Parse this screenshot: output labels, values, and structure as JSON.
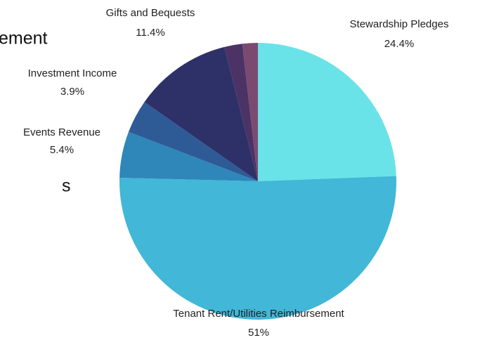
{
  "chart_data": {
    "type": "pie",
    "categories": [
      "Stewardship Pledges",
      "Tenant Rent/Utilities Reimbursement",
      "Events Revenue",
      "Investment Income",
      "Gifts and Bequests",
      null,
      null
    ],
    "values": [
      24.4,
      51,
      5.4,
      3.9,
      11.4,
      2.1,
      1.8
    ],
    "value_labels": [
      "24.4%",
      "51%",
      "5.4%",
      "3.9%",
      "11.4%",
      null,
      null
    ],
    "colors": [
      "#6ae3e8",
      "#42b7d7",
      "#2f86b9",
      "#2e5b96",
      "#2e3068",
      "#4b3366",
      "#7b4a70"
    ]
  },
  "background_text": [
    "ement",
    "s"
  ]
}
